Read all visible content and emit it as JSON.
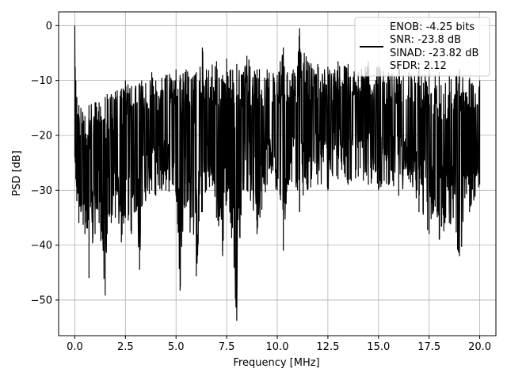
{
  "chart_data": {
    "type": "line",
    "title": "",
    "xlabel": "Frequency [MHz]",
    "ylabel": "PSD [dB]",
    "xlim": [
      -0.8,
      20.8
    ],
    "ylim": [
      -56.5,
      2.5
    ],
    "xticks": [
      0.0,
      2.5,
      5.0,
      7.5,
      10.0,
      12.5,
      15.0,
      17.5,
      20.0
    ],
    "xtick_labels": [
      "0.0",
      "2.5",
      "5.0",
      "7.5",
      "10.0",
      "12.5",
      "15.0",
      "17.5",
      "20.0"
    ],
    "yticks": [
      0,
      -10,
      -20,
      -30,
      -40,
      -50
    ],
    "ytick_labels": [
      "0",
      "−10",
      "−20",
      "−30",
      "−40",
      "−50"
    ],
    "grid": true,
    "legend_position": "top-right",
    "legend": [
      "ENOB: -4.25 bits",
      "SNR: -23.8 dB",
      "SINAD: -23.82 dB",
      "SFDR: 2.12"
    ],
    "series": [
      {
        "color": "#000000",
        "x": [
          0.0,
          0.02,
          0.05,
          0.1,
          0.2,
          0.3,
          0.5,
          0.7,
          1.0,
          1.2,
          1.5,
          1.6,
          1.8,
          2.0,
          2.3,
          2.5,
          2.8,
          3.0,
          3.2,
          3.3,
          3.5,
          3.8,
          4.0,
          4.3,
          4.5,
          5.0,
          5.2,
          5.5,
          6.0,
          6.3,
          6.5,
          7.0,
          7.3,
          7.5,
          7.7,
          8.0,
          8.3,
          8.5,
          9.0,
          9.5,
          10.0,
          10.3,
          10.5,
          11.0,
          11.1,
          11.5,
          12.0,
          12.5,
          13.0,
          13.5,
          14.0,
          14.5,
          15.0,
          15.5,
          16.0,
          16.5,
          17.0,
          17.5,
          17.8,
          18.0,
          18.5,
          19.0,
          19.5,
          20.0
        ],
        "upper": [
          0.0,
          -7.5,
          -10.0,
          -13.0,
          -14.5,
          -15.0,
          -16.5,
          -14.5,
          -14.0,
          -14.0,
          -13.0,
          -12.5,
          -12.5,
          -12.0,
          -11.5,
          -10.0,
          -11.0,
          -11.0,
          -10.5,
          -10.0,
          -10.5,
          -8.5,
          -10.0,
          -9.5,
          -9.0,
          -8.0,
          -9.0,
          -8.0,
          -8.5,
          -4.0,
          -8.0,
          -6.5,
          -9.0,
          -6.0,
          -8.0,
          -7.0,
          -9.0,
          -5.5,
          -8.0,
          -8.0,
          -9.0,
          -4.0,
          -8.5,
          -7.5,
          -0.5,
          -6.5,
          -7.0,
          -7.5,
          -6.5,
          -7.0,
          -8.5,
          -6.5,
          -7.5,
          -8.5,
          -7.0,
          -8.5,
          -7.5,
          -8.0,
          -9.0,
          -8.5,
          -9.0,
          -8.0,
          -9.5,
          -10.0
        ],
        "lower": [
          -24.0,
          -25.0,
          -28.0,
          -32.0,
          -36.0,
          -34.0,
          -38.0,
          -46.0,
          -38.0,
          -36.0,
          -49.2,
          -38.0,
          -36.0,
          -35.0,
          -39.5,
          -35.0,
          -38.0,
          -34.0,
          -44.5,
          -33.0,
          -32.0,
          -30.0,
          -31.0,
          -30.0,
          -30.0,
          -31.0,
          -48.3,
          -33.0,
          -45.7,
          -34.0,
          -30.0,
          -35.0,
          -42.0,
          -32.0,
          -36.0,
          -53.8,
          -30.0,
          -30.0,
          -38.0,
          -29.0,
          -30.0,
          -41.0,
          -29.0,
          -30.0,
          -34.0,
          -30.0,
          -29.0,
          -30.0,
          -28.0,
          -29.0,
          -27.5,
          -29.0,
          -30.0,
          -29.0,
          -31.0,
          -28.0,
          -34.0,
          -38.0,
          -33.0,
          -39.0,
          -36.0,
          -42.0,
          -34.0,
          -29.0
        ]
      }
    ]
  }
}
